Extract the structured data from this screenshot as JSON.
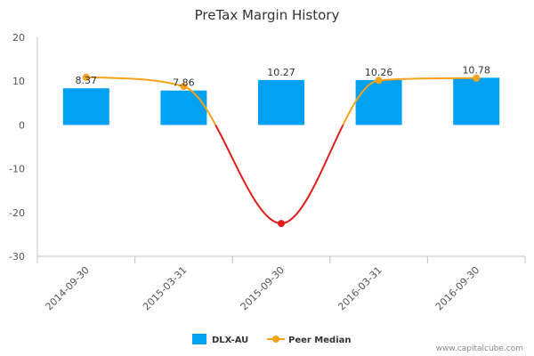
{
  "chart_data": {
    "type": "bar",
    "title": "PreTax Margin History",
    "categories": [
      "2014-09-30",
      "2015-03-31",
      "2015-09-30",
      "2016-03-31",
      "2016-09-30"
    ],
    "ylim": [
      -30,
      20
    ],
    "yticks": [
      20,
      10,
      0,
      -10,
      -20,
      -30
    ],
    "series": [
      {
        "name": "DLX-AU",
        "type": "bar",
        "color": "#00a1f1",
        "values": [
          8.37,
          7.86,
          10.27,
          10.26,
          10.78
        ]
      },
      {
        "name": "Peer Median",
        "type": "line",
        "color": "#f7a21b",
        "negative_color": "#e21b1b",
        "values": [
          10.9,
          8.8,
          -22.5,
          10.2,
          10.7
        ]
      }
    ],
    "data_labels": [
      "8.37",
      "7.86",
      "10.27",
      "10.26",
      "10.78"
    ],
    "legend": "bottom",
    "grid": false
  },
  "footer": {
    "credit": "www.capitalcube.com"
  }
}
